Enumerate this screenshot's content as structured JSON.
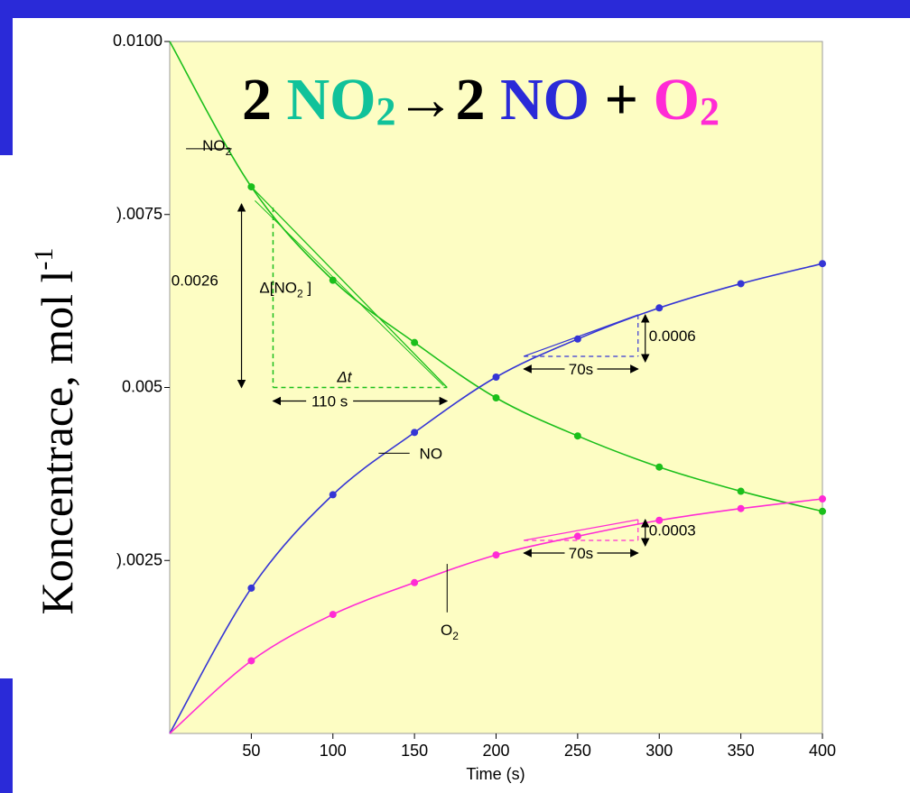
{
  "equation": {
    "coef1": "2",
    "reactant": "NO",
    "reactant_sub": "2",
    "arrow": "→",
    "coef2": "2",
    "product1": "NO",
    "plus": "+",
    "product2": "O",
    "product2_sub": "2"
  },
  "ylabel": {
    "text": "Koncentrace, mol l",
    "sup": "-1"
  },
  "colors": {
    "background": "#fdfdc3",
    "frame": "#2a2ad8",
    "no2": "#1bbf1b",
    "no2_text": "#10c29a",
    "no": "#3535d5",
    "o2": "#ff2bd5",
    "annotation": "#000000"
  },
  "chart_data": {
    "type": "line",
    "xlabel": "Time (s)",
    "ylabel": "Koncentrace, mol l-1",
    "xlim": [
      0,
      400
    ],
    "ylim": [
      0,
      0.01
    ],
    "x_ticks": [
      50,
      100,
      150,
      200,
      250,
      300,
      350,
      400
    ],
    "y_ticks": [
      {
        "value": 0.0025,
        "label": ").0025"
      },
      {
        "value": 0.005,
        "label": "0.005"
      },
      {
        "value": 0.0075,
        "label": ").0075"
      },
      {
        "value": 0.01,
        "label": "0.0100"
      }
    ],
    "series": [
      {
        "name": "NO2",
        "x": [
          0,
          50,
          100,
          150,
          200,
          250,
          300,
          350,
          400
        ],
        "values": [
          0.01,
          0.0079,
          0.00655,
          0.00565,
          0.00485,
          0.0043,
          0.00385,
          0.0035,
          0.00321
        ]
      },
      {
        "name": "NO",
        "x": [
          0,
          50,
          100,
          150,
          200,
          250,
          300,
          350,
          400
        ],
        "values": [
          0,
          0.0021,
          0.00345,
          0.00435,
          0.00515,
          0.0057,
          0.00615,
          0.0065,
          0.00679
        ]
      },
      {
        "name": "O2",
        "x": [
          0,
          50,
          100,
          150,
          200,
          250,
          300,
          350,
          400
        ],
        "values": [
          0,
          0.00105,
          0.00172,
          0.00218,
          0.00258,
          0.00285,
          0.00308,
          0.00325,
          0.00339
        ]
      }
    ],
    "curve_labels": [
      {
        "series": "NO2",
        "text": "NO",
        "sub": "2"
      },
      {
        "series": "NO",
        "text": "NO"
      },
      {
        "series": "O2",
        "text": "O",
        "sub": "2"
      }
    ],
    "annotations": {
      "no2_tangent": {
        "delta_conc_label": "0.0026",
        "delta_conc_name": "Δ[NO",
        "delta_conc_name_sub": "2",
        "delta_conc_name_close": " ]",
        "delta_t_label": "Δt",
        "delta_t_value": "110 s",
        "y_top": 0.0076,
        "y_bottom": 0.005,
        "x_left": 60,
        "x_right": 170
      },
      "no_slope": {
        "delta_conc": "0.0006",
        "delta_t": "70s",
        "x1": 217,
        "x2": 287,
        "y_low": 0.00545,
        "y_high": 0.00605
      },
      "o2_slope": {
        "delta_conc": "0.0003",
        "delta_t": "70s",
        "x1": 217,
        "x2": 287,
        "y_low": 0.00279,
        "y_high": 0.00309
      }
    }
  }
}
